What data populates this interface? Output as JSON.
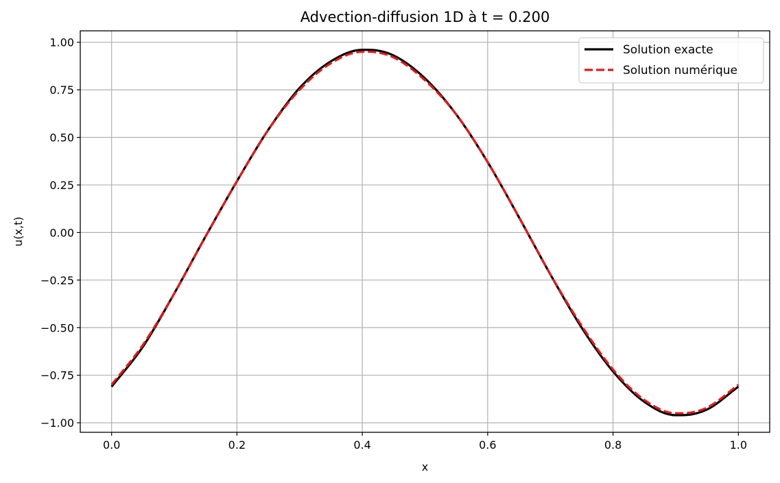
{
  "chart_data": {
    "type": "line",
    "title": "Advection-diffusion 1D à t = 0.200",
    "xlabel": "x",
    "ylabel": "u(x,t)",
    "xlim": [
      -0.05,
      1.05
    ],
    "ylim": [
      -1.05,
      1.06
    ],
    "xticks": [
      0.0,
      0.2,
      0.4,
      0.6,
      0.8,
      1.0
    ],
    "xtick_labels": [
      "0.0",
      "0.2",
      "0.4",
      "0.6",
      "0.8",
      "1.0"
    ],
    "yticks": [
      1.0,
      0.75,
      0.5,
      0.25,
      0.0,
      -0.25,
      -0.5,
      -0.75,
      -1.0
    ],
    "ytick_labels": [
      "1.00",
      "0.75",
      "0.50",
      "0.25",
      "0.00",
      "−0.25",
      "−0.50",
      "−0.75",
      "−1.00"
    ],
    "grid": true,
    "legend_position": "top-right",
    "series": [
      {
        "name": "Solution exacte",
        "color": "#000000",
        "style": "solid",
        "x": [
          0.0,
          0.05,
          0.1,
          0.15,
          0.2,
          0.25,
          0.3,
          0.35,
          0.4,
          0.41,
          0.45,
          0.5,
          0.55,
          0.6,
          0.65,
          0.7,
          0.75,
          0.8,
          0.85,
          0.9,
          0.91,
          0.95,
          1.0
        ],
        "y": [
          -0.81,
          -0.6,
          -0.32,
          -0.02,
          0.27,
          0.54,
          0.76,
          0.9,
          0.96,
          0.96,
          0.93,
          0.81,
          0.62,
          0.37,
          0.08,
          -0.22,
          -0.5,
          -0.73,
          -0.89,
          -0.96,
          -0.96,
          -0.93,
          -0.81
        ]
      },
      {
        "name": "Solution numérique",
        "color": "#e31a1c",
        "style": "dashed",
        "x": [
          0.0,
          0.05,
          0.1,
          0.15,
          0.2,
          0.25,
          0.3,
          0.35,
          0.4,
          0.41,
          0.45,
          0.5,
          0.55,
          0.6,
          0.65,
          0.7,
          0.75,
          0.8,
          0.85,
          0.9,
          0.91,
          0.95,
          1.0
        ],
        "y": [
          -0.8,
          -0.59,
          -0.32,
          -0.02,
          0.27,
          0.54,
          0.75,
          0.89,
          0.95,
          0.95,
          0.92,
          0.8,
          0.62,
          0.37,
          0.08,
          -0.22,
          -0.49,
          -0.72,
          -0.88,
          -0.95,
          -0.95,
          -0.92,
          -0.8
        ]
      }
    ]
  }
}
